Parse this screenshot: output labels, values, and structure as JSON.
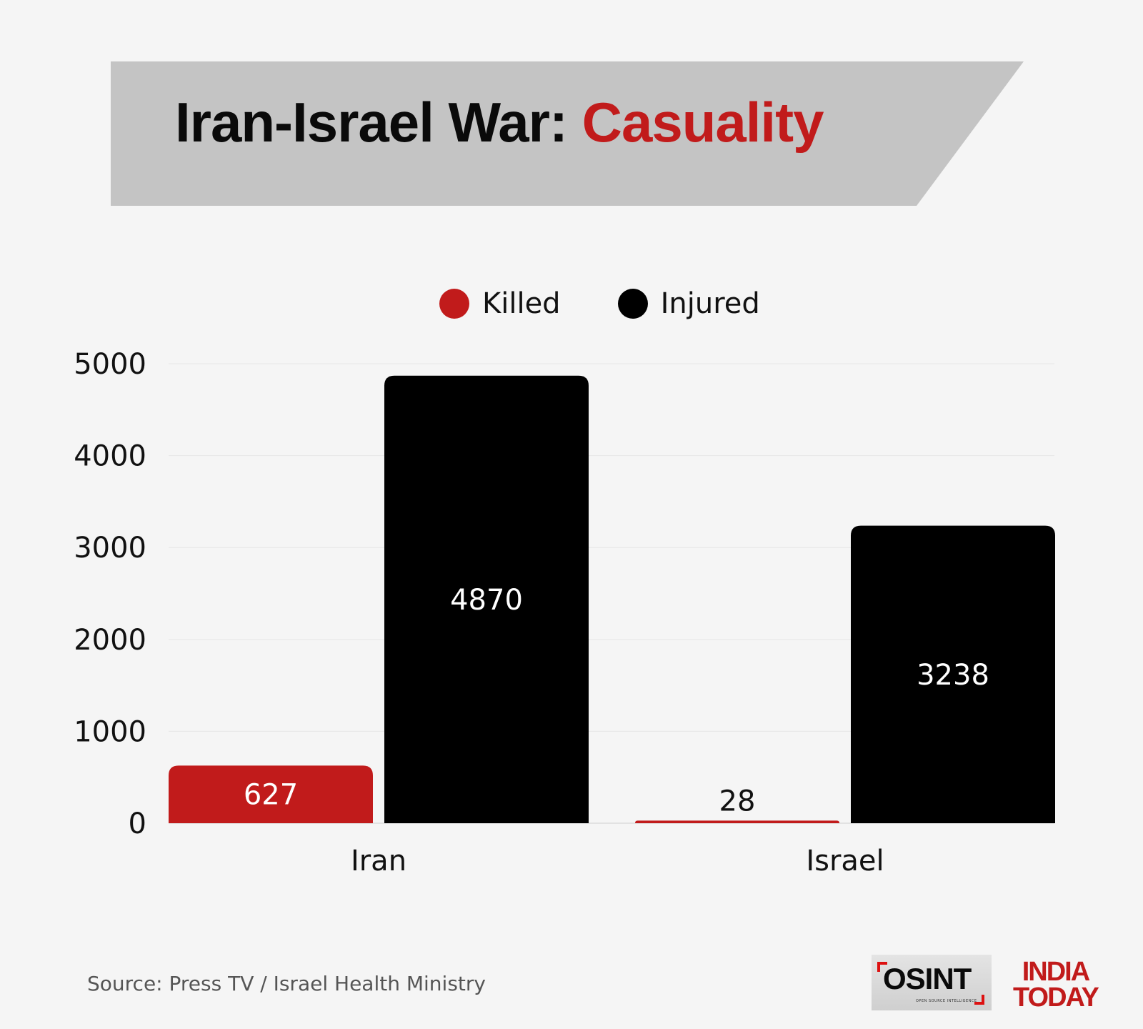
{
  "title": {
    "main": "Iran-Israel War: ",
    "accent": "Casuality"
  },
  "colors": {
    "killed": "#c11b1b",
    "injured": "#000000",
    "banner": "#c4c4c4",
    "background": "#f5f5f5"
  },
  "chart_data": {
    "type": "bar",
    "title": "Iran-Israel War: Casuality",
    "categories": [
      "Iran",
      "Israel"
    ],
    "series": [
      {
        "name": "Killed",
        "values": [
          627,
          28
        ],
        "color": "#c11b1b"
      },
      {
        "name": "Injured",
        "values": [
          4870,
          3238
        ],
        "color": "#000000"
      }
    ],
    "data_labels": {
      "Killed": [
        "627",
        "28"
      ],
      "Injured": [
        "4870",
        "3238"
      ]
    },
    "xlabel": "",
    "ylabel": "",
    "ylim": [
      0,
      5000
    ],
    "yticks": [
      0,
      1000,
      2000,
      3000,
      4000,
      5000
    ],
    "ytick_labels": [
      "0",
      "1000",
      "2000",
      "3000",
      "4000",
      "5000"
    ],
    "grid": true,
    "legend": "top-center"
  },
  "legend": [
    {
      "label": "Killed",
      "color": "#c11b1b"
    },
    {
      "label": "Injured",
      "color": "#000000"
    }
  ],
  "footer": {
    "source": "Source: Press TV / Israel Health Ministry",
    "logo_osint": "OSINT",
    "logo_osint_sub": "OPEN SOURCE INTELLIGENCE",
    "logo_indiatoday_line1": "INDIA",
    "logo_indiatoday_line2": "TODAY"
  }
}
